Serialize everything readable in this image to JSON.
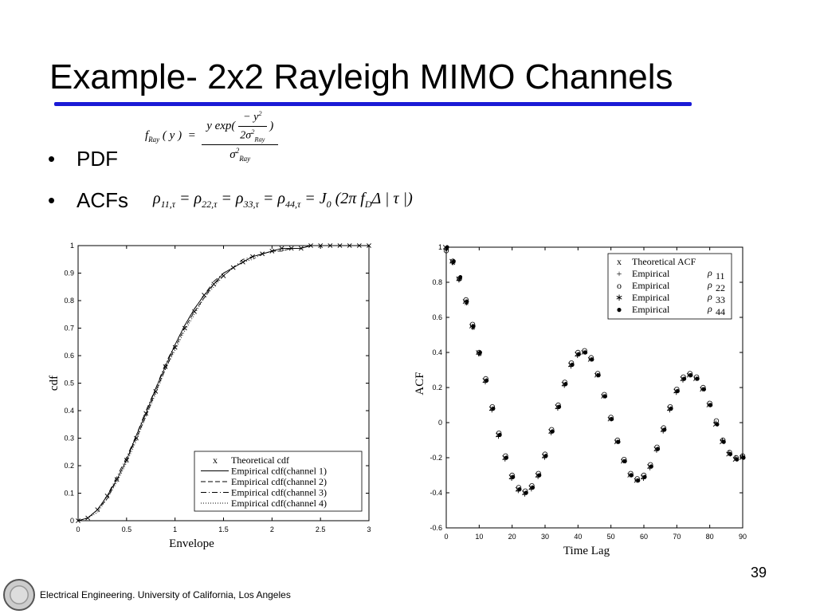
{
  "slide": {
    "title": "Example- 2x2 Rayleigh MIMO Channels",
    "bullets": [
      {
        "label": "PDF"
      },
      {
        "label": "ACFs"
      }
    ],
    "slide_number": "39",
    "footer": "Electrical Engineering. University of California, Los Angeles",
    "accent_color": "#1a1ad6"
  },
  "chart_data": [
    {
      "type": "line",
      "xlabel": "Envelope",
      "ylabel": "cdf",
      "xlim": [
        0,
        3
      ],
      "ylim": [
        0,
        1
      ],
      "xticks": [
        "0",
        "0.5",
        "1",
        "1.5",
        "2",
        "2.5",
        "3"
      ],
      "yticks": [
        "0",
        "0.1",
        "0.2",
        "0.3",
        "0.4",
        "0.5",
        "0.6",
        "0.7",
        "0.8",
        "0.9",
        "1"
      ],
      "legend_position": "bottom-right",
      "x": [
        0,
        0.1,
        0.2,
        0.3,
        0.4,
        0.5,
        0.6,
        0.7,
        0.8,
        0.9,
        1.0,
        1.1,
        1.2,
        1.3,
        1.4,
        1.5,
        1.6,
        1.7,
        1.8,
        1.9,
        2.0,
        2.1,
        2.2,
        2.3,
        2.4,
        2.5,
        2.6,
        2.7,
        2.8,
        2.9,
        3.0
      ],
      "series": [
        {
          "name": "Theoretical cdf",
          "marker": "x",
          "values": [
            0,
            0.01,
            0.04,
            0.09,
            0.15,
            0.22,
            0.3,
            0.39,
            0.47,
            0.56,
            0.63,
            0.7,
            0.76,
            0.82,
            0.86,
            0.89,
            0.92,
            0.94,
            0.96,
            0.97,
            0.98,
            0.99,
            0.99,
            0.99,
            1.0,
            1.0,
            1.0,
            1.0,
            1.0,
            1.0,
            1.0
          ]
        },
        {
          "name": "Empirical cdf(channel 1)",
          "dash": "solid",
          "values": [
            0,
            0.01,
            0.04,
            0.09,
            0.15,
            0.22,
            0.31,
            0.39,
            0.48,
            0.56,
            0.64,
            0.71,
            0.77,
            0.82,
            0.86,
            0.9,
            0.92,
            0.94,
            0.96,
            0.97,
            0.98,
            0.99,
            0.99,
            0.99,
            1.0,
            1.0,
            1.0,
            1.0,
            1.0,
            1.0,
            1.0
          ]
        },
        {
          "name": "Empirical cdf(channel 2)",
          "dash": "dashed",
          "values": [
            0,
            0.01,
            0.04,
            0.08,
            0.15,
            0.22,
            0.3,
            0.38,
            0.47,
            0.55,
            0.63,
            0.7,
            0.76,
            0.81,
            0.86,
            0.89,
            0.92,
            0.94,
            0.96,
            0.97,
            0.98,
            0.98,
            0.99,
            0.99,
            1.0,
            1.0,
            1.0,
            1.0,
            1.0,
            1.0,
            1.0
          ]
        },
        {
          "name": "Empirical cdf(channel 3)",
          "dash": "dashdot",
          "values": [
            0,
            0.01,
            0.04,
            0.09,
            0.16,
            0.23,
            0.31,
            0.4,
            0.48,
            0.57,
            0.64,
            0.71,
            0.77,
            0.82,
            0.87,
            0.9,
            0.92,
            0.95,
            0.96,
            0.97,
            0.98,
            0.99,
            0.99,
            0.99,
            1.0,
            1.0,
            1.0,
            1.0,
            1.0,
            1.0,
            1.0
          ]
        },
        {
          "name": "Empirical cdf(channel 4)",
          "dash": "dotted",
          "values": [
            0,
            0.01,
            0.03,
            0.08,
            0.14,
            0.21,
            0.29,
            0.38,
            0.46,
            0.55,
            0.62,
            0.69,
            0.75,
            0.81,
            0.85,
            0.89,
            0.92,
            0.94,
            0.95,
            0.97,
            0.98,
            0.98,
            0.99,
            0.99,
            1.0,
            1.0,
            1.0,
            1.0,
            1.0,
            1.0,
            1.0
          ]
        }
      ]
    },
    {
      "type": "scatter",
      "xlabel": "Time Lag",
      "ylabel": "ACF",
      "xlim": [
        0,
        90
      ],
      "ylim": [
        -0.6,
        1
      ],
      "xticks": [
        "0",
        "10",
        "20",
        "30",
        "40",
        "50",
        "60",
        "70",
        "80",
        "90"
      ],
      "yticks": [
        "-0.6",
        "-0.4",
        "-0.2",
        "0",
        "0.2",
        "0.4",
        "0.6",
        "0.8",
        "1"
      ],
      "legend_position": "top-right",
      "x": [
        0,
        2,
        4,
        6,
        8,
        10,
        12,
        14,
        16,
        18,
        20,
        22,
        24,
        26,
        28,
        30,
        32,
        34,
        36,
        38,
        40,
        42,
        44,
        46,
        48,
        50,
        52,
        54,
        56,
        58,
        60,
        62,
        64,
        66,
        68,
        70,
        72,
        74,
        76,
        78,
        80,
        82,
        84,
        86,
        88,
        90
      ],
      "series": [
        {
          "name": "Theoretical ACF",
          "marker": "x",
          "values": [
            1.0,
            0.92,
            0.82,
            0.69,
            0.55,
            0.4,
            0.24,
            0.08,
            -0.07,
            -0.2,
            -0.31,
            -0.38,
            -0.4,
            -0.37,
            -0.3,
            -0.19,
            -0.05,
            0.09,
            0.22,
            0.33,
            0.39,
            0.4,
            0.36,
            0.27,
            0.15,
            0.02,
            -0.11,
            -0.22,
            -0.3,
            -0.33,
            -0.31,
            -0.25,
            -0.15,
            -0.04,
            0.08,
            0.18,
            0.25,
            0.27,
            0.25,
            0.19,
            0.1,
            -0.01,
            -0.11,
            -0.18,
            -0.21,
            -0.2
          ]
        },
        {
          "name": "Empirical",
          "rho": "11",
          "marker": "+",
          "values": [
            0.99,
            0.91,
            0.81,
            0.69,
            0.55,
            0.39,
            0.23,
            0.07,
            -0.08,
            -0.21,
            -0.32,
            -0.39,
            -0.41,
            -0.38,
            -0.31,
            -0.2,
            -0.06,
            0.08,
            0.21,
            0.32,
            0.38,
            0.4,
            0.36,
            0.27,
            0.15,
            0.02,
            -0.11,
            -0.22,
            -0.3,
            -0.33,
            -0.32,
            -0.26,
            -0.16,
            -0.05,
            0.07,
            0.17,
            0.24,
            0.27,
            0.25,
            0.19,
            0.1,
            0.0,
            -0.1,
            -0.17,
            -0.2,
            -0.19
          ]
        },
        {
          "name": "Empirical",
          "rho": "22",
          "marker": "o",
          "values": [
            0.98,
            0.92,
            0.82,
            0.7,
            0.56,
            0.4,
            0.25,
            0.09,
            -0.06,
            -0.19,
            -0.3,
            -0.37,
            -0.39,
            -0.36,
            -0.29,
            -0.18,
            -0.04,
            0.1,
            0.23,
            0.34,
            0.4,
            0.41,
            0.37,
            0.28,
            0.16,
            0.03,
            -0.1,
            -0.21,
            -0.29,
            -0.32,
            -0.3,
            -0.24,
            -0.14,
            -0.03,
            0.09,
            0.19,
            0.26,
            0.28,
            0.26,
            0.2,
            0.11,
            0.01,
            -0.1,
            -0.17,
            -0.2,
            -0.19
          ]
        },
        {
          "name": "Empirical",
          "rho": "33",
          "marker": "*",
          "values": [
            0.99,
            0.91,
            0.82,
            0.68,
            0.54,
            0.39,
            0.24,
            0.08,
            -0.07,
            -0.2,
            -0.31,
            -0.38,
            -0.4,
            -0.37,
            -0.3,
            -0.19,
            -0.05,
            0.09,
            0.22,
            0.33,
            0.39,
            0.4,
            0.36,
            0.27,
            0.15,
            0.02,
            -0.11,
            -0.22,
            -0.3,
            -0.33,
            -0.31,
            -0.25,
            -0.15,
            -0.04,
            0.08,
            0.18,
            0.25,
            0.27,
            0.25,
            0.19,
            0.1,
            -0.01,
            -0.11,
            -0.18,
            -0.21,
            -0.2
          ]
        },
        {
          "name": "Empirical",
          "rho": "44",
          "marker": "dot",
          "values": [
            1.0,
            0.92,
            0.83,
            0.69,
            0.55,
            0.4,
            0.24,
            0.08,
            -0.07,
            -0.2,
            -0.31,
            -0.38,
            -0.4,
            -0.37,
            -0.3,
            -0.19,
            -0.05,
            0.09,
            0.22,
            0.33,
            0.39,
            0.4,
            0.36,
            0.27,
            0.15,
            0.02,
            -0.11,
            -0.22,
            -0.3,
            -0.33,
            -0.31,
            -0.25,
            -0.15,
            -0.04,
            0.08,
            0.18,
            0.25,
            0.27,
            0.25,
            0.19,
            0.1,
            -0.01,
            -0.11,
            -0.18,
            -0.21,
            -0.2
          ]
        }
      ]
    }
  ]
}
